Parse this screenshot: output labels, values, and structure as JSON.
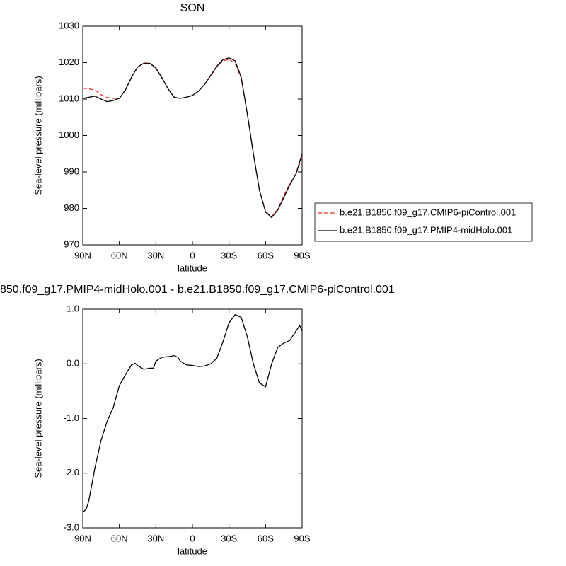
{
  "chart_data": [
    {
      "type": "line",
      "title": "SON",
      "x_label": "latitude",
      "y_label": "Sea-level pressure (millibars)",
      "x": [
        90,
        85,
        80,
        75,
        70,
        65,
        60,
        55,
        50,
        45,
        40,
        35,
        30,
        25,
        20,
        15,
        10,
        5,
        0,
        -5,
        -10,
        -15,
        -20,
        -25,
        -30,
        -35,
        -40,
        -45,
        -50,
        -55,
        -60,
        -65,
        -70,
        -75,
        -80,
        -85,
        -90
      ],
      "series": [
        {
          "name": "b.e21.B1850.f09_g17.CMIP6-piControl.001",
          "color": "#e8302a",
          "dash": true,
          "values": [
            1013,
            1012.8,
            1012.5,
            1011.2,
            1010.4,
            1010.2,
            1010.2,
            1012.6,
            1016,
            1018.8,
            1019.9,
            1019.9,
            1018.5,
            1015.8,
            1012.8,
            1010.5,
            1010.2,
            1010.5,
            1011,
            1012.2,
            1014,
            1016.4,
            1018.8,
            1020.5,
            1020.9,
            1019.8,
            1015.8,
            1006,
            995,
            985,
            979.2,
            977.7,
            979.8,
            983.5,
            986.8,
            989.5,
            994
          ]
        },
        {
          "name": "b.e21.B1850.f09_g17.PMIP4-midHolo.001",
          "color": "#000000",
          "dash": false,
          "values": [
            1010.2,
            1010.5,
            1010.8,
            1010,
            1009.3,
            1009.6,
            1010.2,
            1012.5,
            1016,
            1018.8,
            1019.8,
            1019.8,
            1018.5,
            1015.8,
            1012.8,
            1010.5,
            1010.2,
            1010.5,
            1011,
            1012.2,
            1014,
            1016.5,
            1019,
            1020.8,
            1021.3,
            1020.5,
            1016,
            1006,
            995,
            985,
            979,
            977.5,
            979.5,
            983,
            986.5,
            989.5,
            995
          ]
        }
      ],
      "xlim": [
        90,
        -90
      ],
      "xticks": [
        {
          "value": 90,
          "label": "90N"
        },
        {
          "value": 60,
          "label": "60N"
        },
        {
          "value": 30,
          "label": "30N"
        },
        0,
        {
          "value": -30,
          "label": "30S"
        },
        {
          "value": -60,
          "label": "60S"
        },
        {
          "value": -90,
          "label": "90S"
        }
      ],
      "ylim": [
        970,
        1030
      ],
      "yticks": [
        970,
        980,
        990,
        1000,
        1010,
        1020,
        1030
      ],
      "legend": "right"
    },
    {
      "type": "line",
      "title": "850.f09_g17.PMIP4-midHolo.001 - b.e21.B1850.f09_g17.CMIP6-piControl.001",
      "x_label": "latitude",
      "y_label": "Sea-level pressure (millibars)",
      "x": [
        90,
        87,
        85,
        80,
        75,
        70,
        65,
        60,
        55,
        50,
        47,
        45,
        40,
        35,
        32,
        30,
        25,
        20,
        15,
        12,
        10,
        5,
        0,
        -5,
        -10,
        -15,
        -20,
        -25,
        -30,
        -35,
        -40,
        -45,
        -50,
        -55,
        -60,
        -65,
        -70,
        -75,
        -80,
        -85,
        -88,
        -90
      ],
      "series": [
        {
          "color": "#000000",
          "dash": false,
          "values": [
            -2.72,
            -2.65,
            -2.5,
            -1.9,
            -1.4,
            -1.05,
            -0.8,
            -0.4,
            -0.2,
            -0.02,
            0.01,
            -0.03,
            -0.1,
            -0.08,
            -0.08,
            0.05,
            0.12,
            0.13,
            0.15,
            0.12,
            0.05,
            -0.02,
            -0.03,
            -0.05,
            -0.04,
            0,
            0.1,
            0.4,
            0.75,
            0.9,
            0.85,
            0.5,
            0,
            -0.35,
            -0.42,
            0,
            0.3,
            0.38,
            0.43,
            0.6,
            0.7,
            0.6
          ]
        }
      ],
      "xlim": [
        90,
        -90
      ],
      "xticks": [
        {
          "value": 90,
          "label": "90N"
        },
        {
          "value": 60,
          "label": "60N"
        },
        {
          "value": 30,
          "label": "30N"
        },
        0,
        {
          "value": -30,
          "label": "30S"
        },
        {
          "value": -60,
          "label": "60S"
        },
        {
          "value": -90,
          "label": "90S"
        }
      ],
      "ylim": [
        -3,
        1
      ],
      "yticks": [
        {
          "value": -3,
          "label": "-3.0"
        },
        {
          "value": -2,
          "label": "-2.0"
        },
        {
          "value": -1,
          "label": "-1.0"
        },
        {
          "value": 0,
          "label": "0.0"
        },
        {
          "value": 1,
          "label": "1.0"
        }
      ]
    }
  ]
}
